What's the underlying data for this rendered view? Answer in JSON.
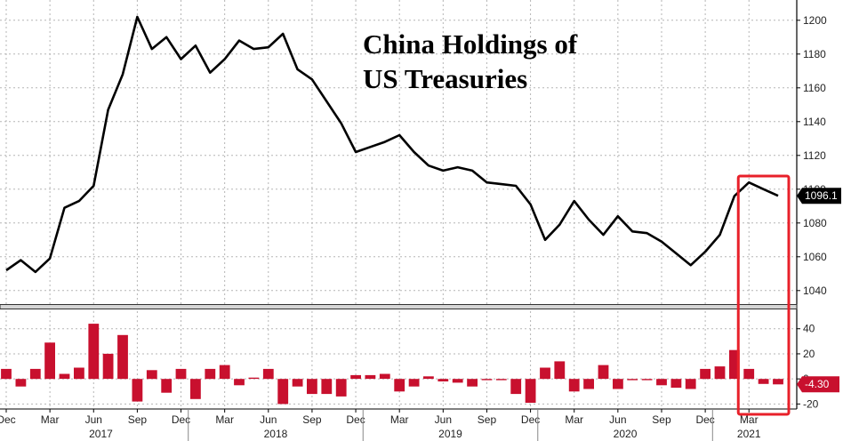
{
  "chart_data": [
    {
      "type": "line",
      "title_lines": [
        "China Holdings of",
        "US Treasuries"
      ],
      "y_ticks": [
        1040,
        1060,
        1080,
        1100,
        1120,
        1140,
        1160,
        1180,
        1200
      ],
      "ylim": [
        1032,
        1212
      ],
      "grid": true,
      "last_value_label": "1096.1",
      "series": [
        {
          "color": "#000000",
          "values": [
            1052,
            1058,
            1051,
            1059,
            1089,
            1093,
            1102,
            1147,
            1168,
            1202,
            1183,
            1190,
            1177,
            1185,
            1169,
            1177,
            1188,
            1183,
            1184,
            1192,
            1171,
            1165,
            1152,
            1139,
            1122,
            1125,
            1128,
            1132,
            1122,
            1114,
            1111,
            1113,
            1111,
            1104,
            1103,
            1102,
            1091,
            1070,
            1079,
            1093,
            1082,
            1073,
            1084,
            1075,
            1074,
            1069,
            1062,
            1055,
            1063,
            1073,
            1096,
            1104,
            1100,
            1096.1
          ]
        }
      ]
    },
    {
      "type": "bar",
      "y_ticks": [
        -20,
        0,
        20,
        40
      ],
      "ylim": [
        -24,
        54
      ],
      "grid": true,
      "last_value_label": "-4.30",
      "series": [
        {
          "color": "#c8102e",
          "values": [
            8,
            -6,
            8,
            29,
            4,
            9,
            44,
            20,
            35,
            -18,
            7,
            -11,
            8,
            -16,
            8,
            11,
            -5,
            1,
            8,
            -20,
            -6,
            -12,
            -12,
            -14,
            3,
            3,
            4,
            -10,
            -6,
            2,
            -2,
            -3,
            -6,
            -1,
            -1,
            -12,
            -19,
            9,
            14,
            -10,
            -8,
            11,
            -8,
            -1,
            -1,
            -5,
            -7,
            -8,
            8,
            10,
            23,
            8,
            -4,
            -4.3
          ]
        }
      ]
    }
  ],
  "x_axis": {
    "month_labels": [
      {
        "label": "Dec",
        "index": 0
      },
      {
        "label": "Mar",
        "index": 3
      },
      {
        "label": "Jun",
        "index": 6
      },
      {
        "label": "Sep",
        "index": 9
      },
      {
        "label": "Dec",
        "index": 12
      },
      {
        "label": "Mar",
        "index": 15
      },
      {
        "label": "Jun",
        "index": 18
      },
      {
        "label": "Sep",
        "index": 21
      },
      {
        "label": "Dec",
        "index": 24
      },
      {
        "label": "Mar",
        "index": 27
      },
      {
        "label": "Jun",
        "index": 30
      },
      {
        "label": "Sep",
        "index": 33
      },
      {
        "label": "Dec",
        "index": 36
      },
      {
        "label": "Mar",
        "index": 39
      },
      {
        "label": "Jun",
        "index": 42
      },
      {
        "label": "Sep",
        "index": 45
      },
      {
        "label": "Dec",
        "index": 48
      },
      {
        "label": "Mar",
        "index": 51
      }
    ],
    "year_labels": [
      {
        "label": "2017",
        "start": 1,
        "end": 12
      },
      {
        "label": "2018",
        "start": 13,
        "end": 24
      },
      {
        "label": "2019",
        "start": 25,
        "end": 36
      },
      {
        "label": "2020",
        "start": 37,
        "end": 48
      },
      {
        "label": "2021",
        "start": 49,
        "end": 53
      }
    ]
  },
  "highlight": {
    "color": "#e8202a",
    "from_index": 51,
    "to_index": 53
  },
  "colors": {
    "line": "#000000",
    "bars": "#c8102e",
    "grid": "#b5b5b5"
  }
}
